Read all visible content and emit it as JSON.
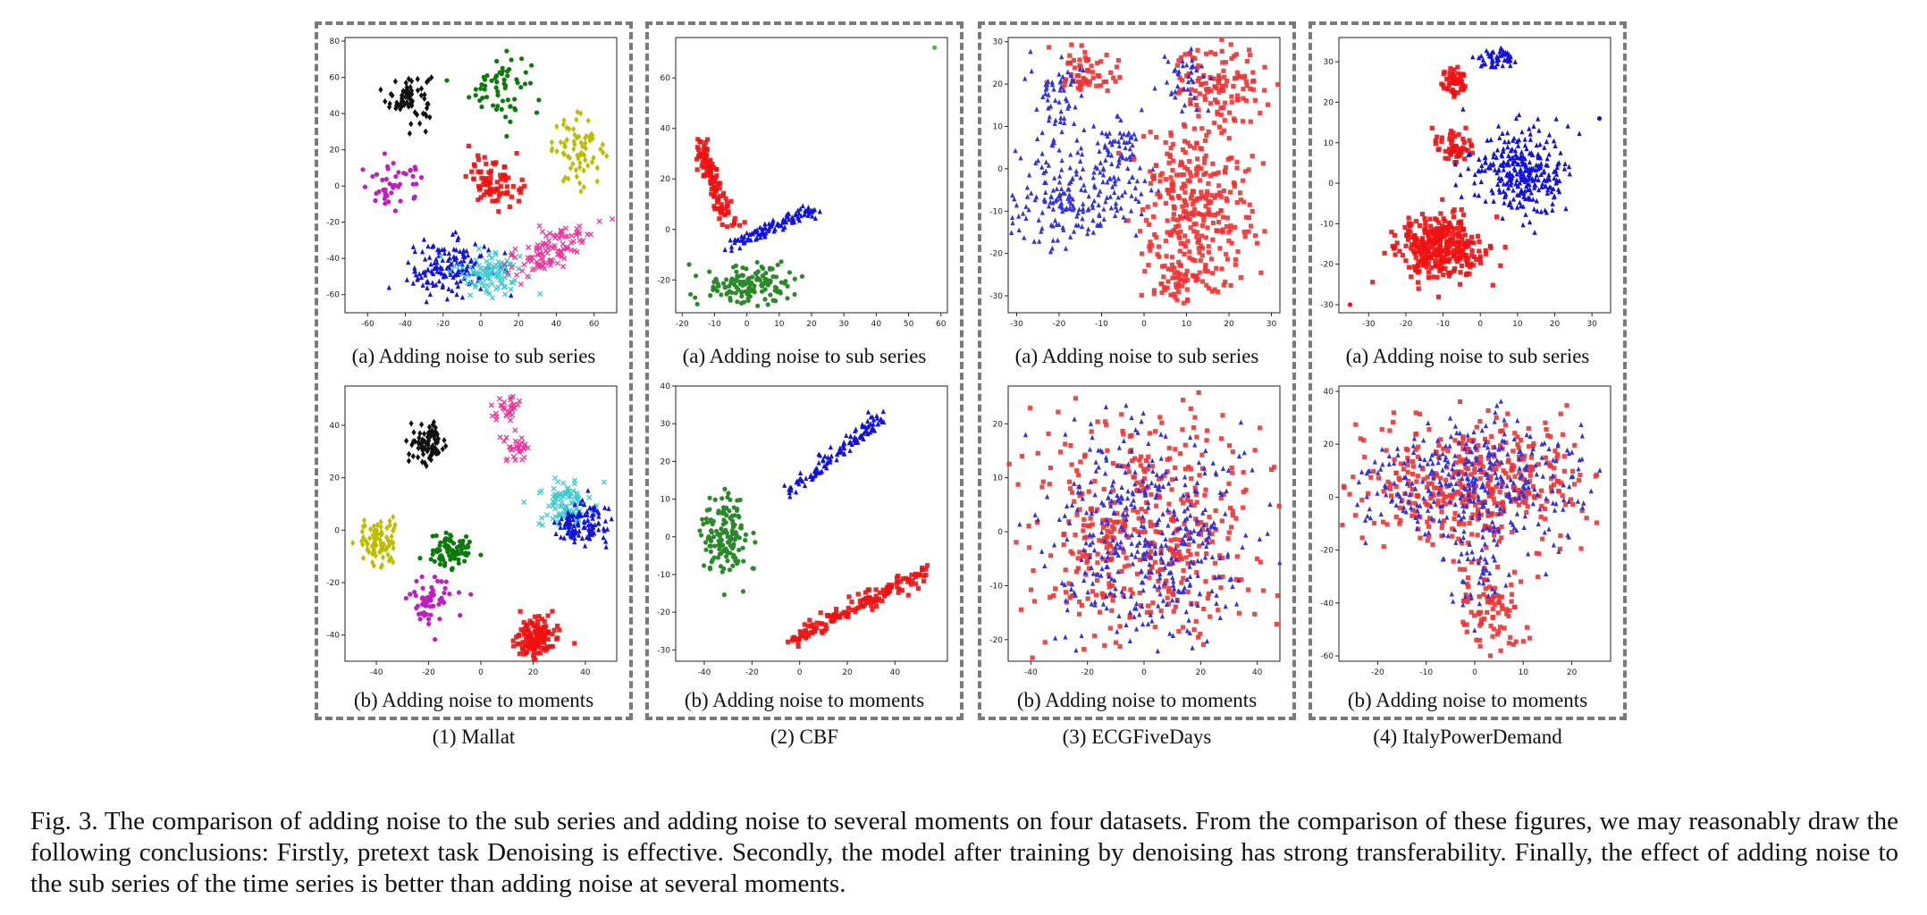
{
  "figure": {
    "caption": "Fig. 3.  The comparison of adding noise to the sub series and adding noise to several moments on four datasets. From the comparison of these figures, we may reasonably draw the following conclusions: Firstly, pretext task Denoising is effective. Secondly, the model after training by denoising has strong transferability. Finally, the effect of adding noise to the sub series of the time series is better than adding noise at several moments."
  },
  "groups": [
    {
      "caption": "(1) Mallat"
    },
    {
      "caption": "(2) CBF"
    },
    {
      "caption": "(3) ECGFiveDays"
    },
    {
      "caption": "(4) ItalyPowerDemand"
    }
  ],
  "chart_data": [
    {
      "type": "scatter",
      "dataset": "Mallat",
      "caption": "(a) Adding noise to sub series",
      "xlim": [
        -72,
        72
      ],
      "ylim": [
        -70,
        82
      ],
      "xticks": [
        -60,
        -40,
        -20,
        0,
        20,
        40,
        60
      ],
      "yticks": [
        -60,
        -40,
        -20,
        0,
        20,
        40,
        60,
        80
      ],
      "clusters": [
        {
          "color": "#111111",
          "marker": "diamond",
          "center": [
            -38,
            49
          ],
          "spread": [
            6,
            7
          ],
          "n": 70
        },
        {
          "color": "#0a7a0a",
          "marker": "circle",
          "center": [
            10,
            55
          ],
          "spread": [
            8,
            9
          ],
          "n": 60
        },
        {
          "color": "#bdbd00",
          "marker": "diamond",
          "center": [
            52,
            20
          ],
          "spread": [
            7,
            9
          ],
          "n": 70
        },
        {
          "color": "#bf1fbf",
          "marker": "circle",
          "center": [
            -46,
            0
          ],
          "spread": [
            9,
            6
          ],
          "n": 45
        },
        {
          "color": "#ee1111",
          "marker": "square",
          "center": [
            7,
            3
          ],
          "spread": [
            7,
            7
          ],
          "n": 80
        },
        {
          "color": "#1212dd",
          "marker": "triangle",
          "center": [
            -17,
            -46
          ],
          "spread": [
            11,
            8
          ],
          "n": 150
        },
        {
          "color": "#3cc9d0",
          "marker": "x",
          "center": [
            5,
            -47
          ],
          "spread": [
            9,
            6
          ],
          "n": 100
        },
        {
          "color": "#ee3399",
          "marker": "x",
          "center": [
            38,
            -35
          ],
          "spread": [
            12,
            6
          ],
          "n": 110,
          "tilt": 0.55
        }
      ]
    },
    {
      "type": "scatter",
      "dataset": "Mallat",
      "caption": "(b) Adding noise to moments",
      "xlim": [
        -52,
        52
      ],
      "ylim": [
        -50,
        55
      ],
      "xticks": [
        -40,
        -20,
        0,
        20,
        40
      ],
      "yticks": [
        -40,
        -20,
        0,
        20,
        40
      ],
      "clusters": [
        {
          "color": "#111111",
          "marker": "diamond",
          "center": [
            -20,
            33
          ],
          "spread": [
            3.5,
            3.5
          ],
          "n": 80
        },
        {
          "color": "#ee3399",
          "marker": "x",
          "center": [
            10,
            47
          ],
          "spread": [
            2.5,
            2.5
          ],
          "n": 35
        },
        {
          "color": "#ee3399",
          "marker": "x",
          "center": [
            14,
            31
          ],
          "spread": [
            2.5,
            2.5
          ],
          "n": 30
        },
        {
          "color": "#3cc9d0",
          "marker": "x",
          "center": [
            32,
            10
          ],
          "spread": [
            5,
            5
          ],
          "n": 100
        },
        {
          "color": "#1212dd",
          "marker": "triangle",
          "center": [
            38,
            2
          ],
          "spread": [
            5,
            4
          ],
          "n": 120
        },
        {
          "color": "#bdbd00",
          "marker": "diamond",
          "center": [
            -39,
            -5
          ],
          "spread": [
            4,
            4
          ],
          "n": 90
        },
        {
          "color": "#0a7a0a",
          "marker": "circle",
          "center": [
            -12,
            -8
          ],
          "spread": [
            4,
            4
          ],
          "n": 80
        },
        {
          "color": "#bf1fbf",
          "marker": "circle",
          "center": [
            -19,
            -27
          ],
          "spread": [
            4,
            4
          ],
          "n": 60
        },
        {
          "color": "#ee1111",
          "marker": "square",
          "center": [
            21,
            -41
          ],
          "spread": [
            4,
            4
          ],
          "n": 120
        }
      ]
    },
    {
      "type": "scatter",
      "dataset": "CBF",
      "caption": "(a) Adding noise to sub series",
      "xlim": [
        -22,
        62
      ],
      "ylim": [
        -33,
        76
      ],
      "xticks": [
        -20,
        -10,
        0,
        10,
        20,
        30,
        40,
        50,
        60
      ],
      "yticks": [
        -20,
        0,
        20,
        40,
        60
      ],
      "clusters": [
        {
          "color": "#ee1111",
          "marker": "square",
          "center": [
            -10,
            18
          ],
          "spread": [
            2,
            4
          ],
          "n": 110,
          "tilt": -3.2,
          "lenspan": 18
        },
        {
          "color": "#1212dd",
          "marker": "triangle",
          "center": [
            8,
            1
          ],
          "spread": [
            2,
            2
          ],
          "n": 110,
          "tilt": 0.55,
          "lenspan": 15
        },
        {
          "color": "#2a8a2a",
          "marker": "circle",
          "center": [
            0,
            -22
          ],
          "spread": [
            7,
            4
          ],
          "n": 140
        }
      ],
      "outliers": [
        {
          "x": 58,
          "y": 72,
          "color": "#3cc03c"
        },
        {
          "x": -16,
          "y": -27,
          "color": "#2a8a2a"
        }
      ]
    },
    {
      "type": "scatter",
      "dataset": "CBF",
      "caption": "(b) Adding noise to moments",
      "xlim": [
        -52,
        62
      ],
      "ylim": [
        -33,
        40
      ],
      "xticks": [
        -40,
        -20,
        0,
        20,
        40
      ],
      "yticks": [
        -30,
        -20,
        -10,
        0,
        10,
        20,
        30,
        40
      ],
      "clusters": [
        {
          "color": "#2a8a2a",
          "marker": "circle",
          "center": [
            -31,
            0
          ],
          "spread": [
            5,
            6
          ],
          "n": 140
        },
        {
          "color": "#1212dd",
          "marker": "triangle",
          "center": [
            15,
            22
          ],
          "spread": [
            2,
            2.5
          ],
          "n": 120,
          "tilt": 0.5,
          "lenspan": 22
        },
        {
          "color": "#ee1111",
          "marker": "square",
          "center": [
            25,
            -18
          ],
          "spread": [
            2,
            2
          ],
          "n": 150,
          "tilt": 0.33,
          "lenspan": 30
        }
      ]
    },
    {
      "type": "scatter",
      "dataset": "ECGFiveDays",
      "caption": "(a) Adding noise to sub series",
      "xlim": [
        -32,
        32
      ],
      "ylim": [
        -34,
        31
      ],
      "xticks": [
        -30,
        -20,
        -10,
        0,
        10,
        20,
        30
      ],
      "yticks": [
        -30,
        -20,
        -10,
        0,
        10,
        20,
        30
      ],
      "clusters": [
        {
          "color": "#ee3333",
          "marker": "square",
          "center": [
            -14,
            23
          ],
          "spread": [
            4,
            3
          ],
          "n": 60
        },
        {
          "color": "#3333dd",
          "marker": "triangle",
          "center": [
            -20,
            16
          ],
          "spread": [
            3,
            5
          ],
          "n": 60
        },
        {
          "color": "#ee3333",
          "marker": "square",
          "center": [
            18,
            20
          ],
          "spread": [
            5,
            5
          ],
          "n": 120
        },
        {
          "color": "#3333dd",
          "marker": "triangle",
          "center": [
            10,
            21
          ],
          "spread": [
            3,
            4
          ],
          "n": 40
        },
        {
          "color": "#3333dd",
          "marker": "triangle",
          "center": [
            -18,
            -6
          ],
          "spread": [
            9,
            6
          ],
          "n": 220
        },
        {
          "color": "#3333dd",
          "marker": "triangle",
          "center": [
            -5,
            5
          ],
          "spread": [
            3,
            4
          ],
          "n": 50
        },
        {
          "color": "#ee3333",
          "marker": "square",
          "center": [
            12,
            -8
          ],
          "spread": [
            7,
            9
          ],
          "n": 300
        },
        {
          "color": "#ee3333",
          "marker": "square",
          "center": [
            8,
            -26
          ],
          "spread": [
            4,
            3
          ],
          "n": 60
        }
      ]
    },
    {
      "type": "scatter",
      "dataset": "ECGFiveDays",
      "caption": "(b) Adding noise to moments",
      "xlim": [
        -48,
        48
      ],
      "ylim": [
        -24,
        27
      ],
      "xticks": [
        -40,
        -20,
        0,
        20,
        40
      ],
      "yticks": [
        -20,
        -10,
        0,
        10,
        20
      ],
      "clusters": [
        {
          "color": "#ee3333",
          "marker": "square",
          "center": [
            0,
            0
          ],
          "spread": [
            20,
            11
          ],
          "n": 450
        },
        {
          "color": "#3333dd",
          "marker": "triangle",
          "center": [
            0,
            -1
          ],
          "spread": [
            18,
            10
          ],
          "n": 400
        }
      ]
    },
    {
      "type": "scatter",
      "dataset": "ItalyPowerDemand",
      "caption": "(a) Adding noise to sub series",
      "xlim": [
        -38,
        35
      ],
      "ylim": [
        -32,
        36
      ],
      "xticks": [
        -30,
        -20,
        -10,
        0,
        10,
        20,
        30
      ],
      "yticks": [
        -30,
        -20,
        -10,
        0,
        10,
        20,
        30
      ],
      "clusters": [
        {
          "color": "#1212dd",
          "marker": "triangle",
          "center": [
            5,
            31
          ],
          "spread": [
            2.5,
            1.5
          ],
          "n": 50
        },
        {
          "color": "#ee1111",
          "marker": "square",
          "center": [
            -7,
            25
          ],
          "spread": [
            2,
            2
          ],
          "n": 50
        },
        {
          "color": "#ee1111",
          "marker": "square",
          "center": [
            -7,
            9
          ],
          "spread": [
            3,
            2
          ],
          "n": 50
        },
        {
          "color": "#1212dd",
          "marker": "triangle",
          "center": [
            11,
            3
          ],
          "spread": [
            6,
            5
          ],
          "n": 300
        },
        {
          "color": "#ee1111",
          "marker": "square",
          "center": [
            -11,
            -16
          ],
          "spread": [
            6,
            4
          ],
          "n": 320
        }
      ],
      "outliers": [
        {
          "x": 32,
          "y": 16,
          "color": "#1212dd"
        },
        {
          "x": -35,
          "y": -30,
          "color": "#ee1111"
        }
      ]
    },
    {
      "type": "scatter",
      "dataset": "ItalyPowerDemand",
      "caption": "(b) Adding noise to moments",
      "xlim": [
        -28,
        28
      ],
      "ylim": [
        -62,
        42
      ],
      "xticks": [
        -20,
        -10,
        0,
        10,
        20
      ],
      "yticks": [
        -60,
        -40,
        -20,
        0,
        20,
        40
      ],
      "clusters": [
        {
          "color": "#ee3333",
          "marker": "square",
          "center": [
            0,
            5
          ],
          "spread": [
            12,
            12
          ],
          "n": 420
        },
        {
          "color": "#3333dd",
          "marker": "triangle",
          "center": [
            0,
            5
          ],
          "spread": [
            12,
            12
          ],
          "n": 350
        },
        {
          "color": "#ee3333",
          "marker": "square",
          "center": [
            3,
            -42
          ],
          "spread": [
            3,
            8
          ],
          "n": 90
        },
        {
          "color": "#3333dd",
          "marker": "triangle",
          "center": [
            0,
            -30
          ],
          "spread": [
            3,
            6
          ],
          "n": 40
        }
      ]
    }
  ]
}
